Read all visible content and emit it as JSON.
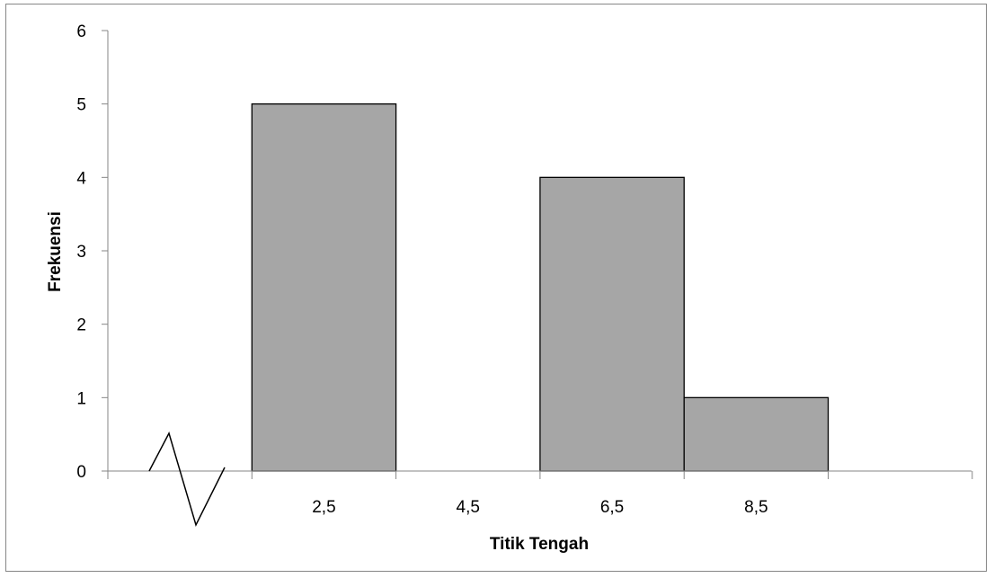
{
  "chart_data": {
    "type": "bar",
    "title": "",
    "xlabel": "Titik Tengah",
    "ylabel": "Frekuensi",
    "ylim": [
      0,
      6
    ],
    "yticks": [
      "0",
      "1",
      "2",
      "3",
      "4",
      "5",
      "6"
    ],
    "categories": [
      "2,5",
      "4,5",
      "6,5",
      "8,5"
    ],
    "values": [
      5,
      0,
      4,
      1
    ],
    "bar_color": "#a6a6a6",
    "bar_edge_color": "#000000",
    "axis_break": true,
    "grid": false,
    "legend": "none"
  }
}
